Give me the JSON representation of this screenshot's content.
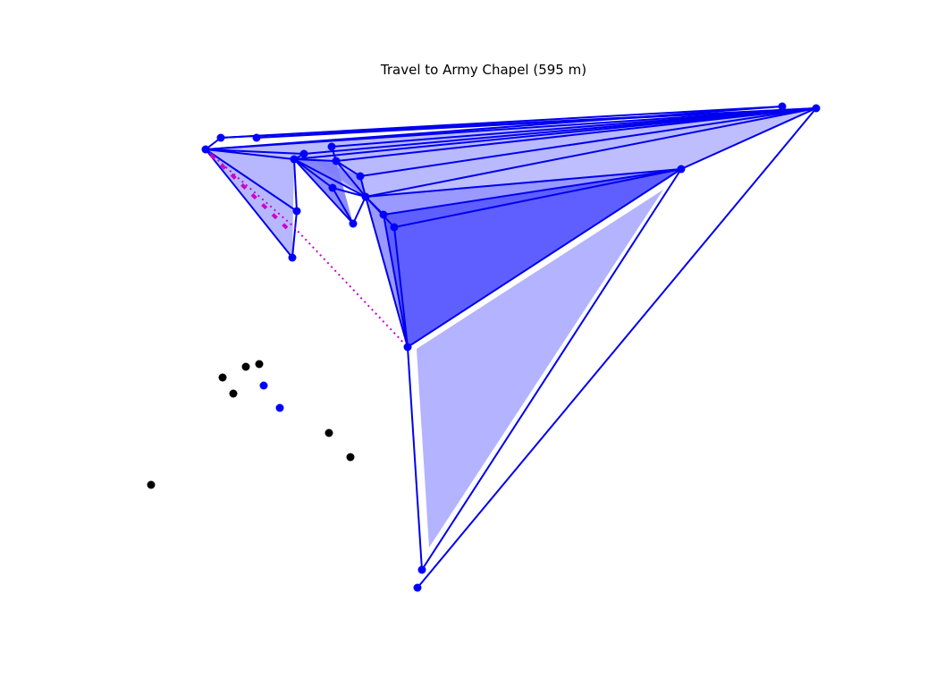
{
  "title": "Travel to Army Chapel (595 m)",
  "colors": {
    "edge": "#0000ee",
    "node": "#0000ff",
    "fill_light": "#b3b3ff",
    "fill_mid": "#8080ff",
    "fill_dark": "#5555ff",
    "route": "#cc00cc",
    "unvisited": "#000000"
  }
}
